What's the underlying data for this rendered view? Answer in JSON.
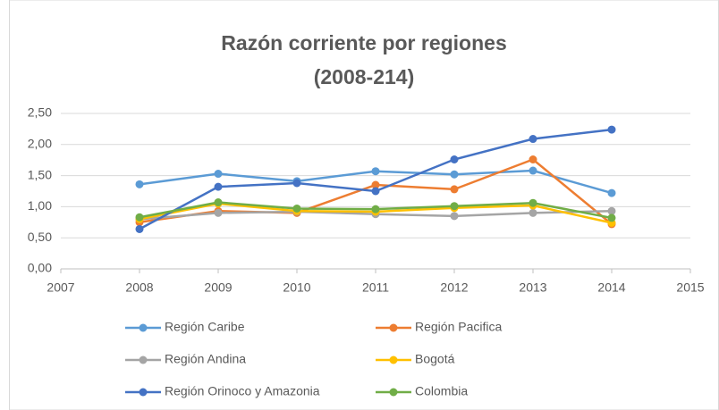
{
  "chart_data": {
    "type": "line",
    "title": [
      "Razón corriente por regiones",
      "(2008-214)"
    ],
    "x": [
      2008,
      2009,
      2010,
      2011,
      2012,
      2013,
      2014
    ],
    "series": [
      {
        "name": "Región Caribe",
        "color": "#5b9bd5",
        "values": [
          1.36,
          1.53,
          1.41,
          1.57,
          1.52,
          1.58,
          1.22
        ]
      },
      {
        "name": "Región Pacifica",
        "color": "#ed7d31",
        "values": [
          0.75,
          0.93,
          0.9,
          1.35,
          1.28,
          1.76,
          0.72
        ]
      },
      {
        "name": "Región Andina",
        "color": "#a5a5a5",
        "values": [
          0.8,
          0.9,
          0.92,
          0.88,
          0.85,
          0.9,
          0.93
        ]
      },
      {
        "name": "Bogotá",
        "color": "#ffc000",
        "values": [
          0.8,
          1.05,
          0.93,
          0.92,
          0.98,
          1.02,
          0.74
        ]
      },
      {
        "name": "Región Orinoco y Amazonia",
        "color": "#4472c4",
        "values": [
          0.64,
          1.32,
          1.38,
          1.25,
          1.76,
          2.09,
          2.24
        ]
      },
      {
        "name": "Colombia",
        "color": "#70ad47",
        "values": [
          0.83,
          1.07,
          0.97,
          0.96,
          1.01,
          1.06,
          0.82
        ]
      }
    ],
    "xlim": [
      2007,
      2015
    ],
    "xticks": [
      2007,
      2008,
      2009,
      2010,
      2011,
      2012,
      2013,
      2014,
      2015
    ],
    "ylim": [
      0,
      2.5
    ],
    "yticks": [
      {
        "value": 0,
        "label": "0,00"
      },
      {
        "value": 0.5,
        "label": "0,50"
      },
      {
        "value": 1,
        "label": "1,00"
      },
      {
        "value": 1.5,
        "label": "1,50"
      },
      {
        "value": 2,
        "label": "2,00"
      },
      {
        "value": 2.5,
        "label": "2,50"
      }
    ],
    "grid": true,
    "legend": "bottom"
  }
}
